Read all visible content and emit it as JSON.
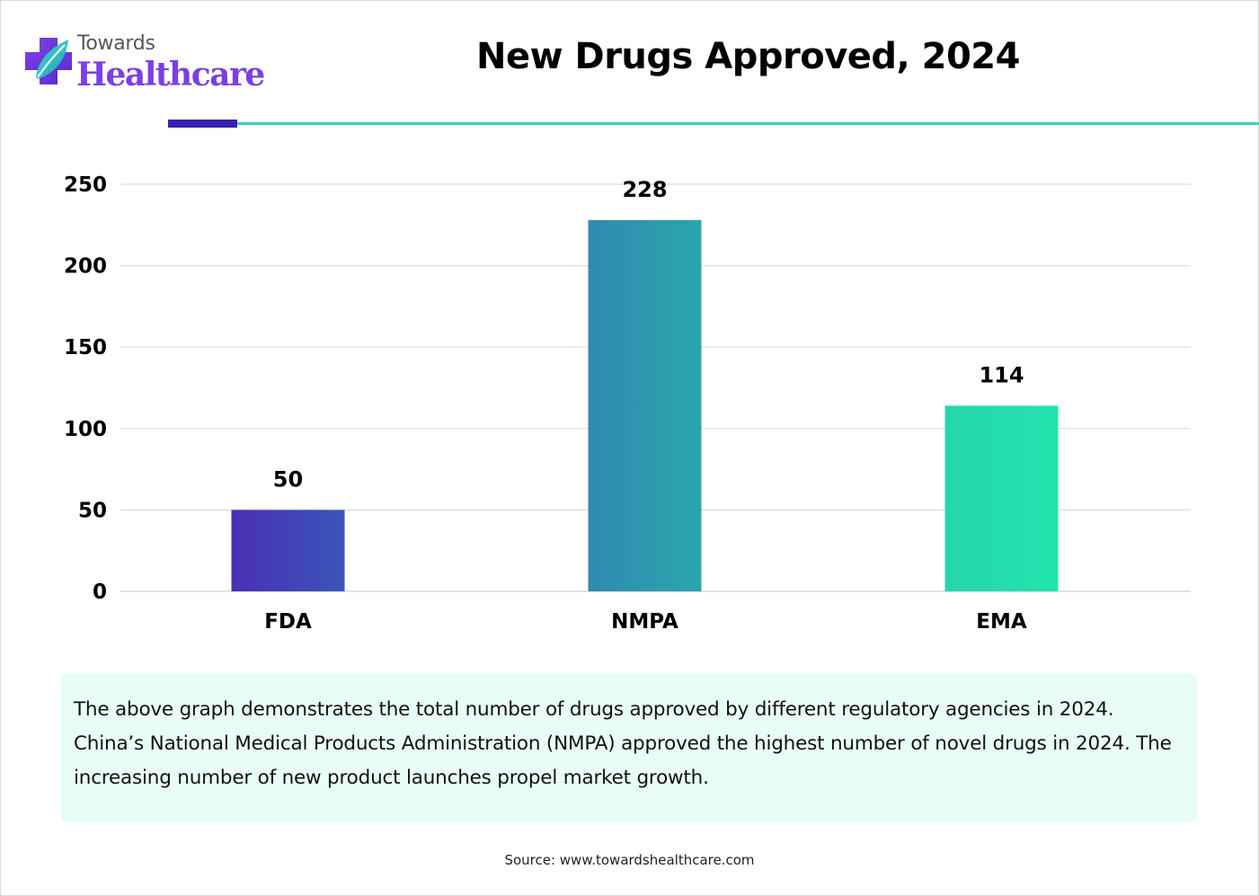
{
  "logo": {
    "line1": "Towards",
    "line2": "Healthcare"
  },
  "header": {
    "title": "New Drugs Approved, 2024"
  },
  "colors": {
    "fda": "#4433b8",
    "nmpa": "#2e9bb0",
    "ema": "#24e0ae",
    "accent_dark": "#3a1fb0",
    "accent_teal": "#33d6bd"
  },
  "chart_data": {
    "type": "bar",
    "title": "New Drugs Approved, 2024",
    "categories": [
      "FDA",
      "NMPA",
      "EMA"
    ],
    "values": [
      50,
      228,
      114
    ],
    "value_labels": [
      "50",
      "228",
      "114"
    ],
    "ylim": [
      0,
      250
    ],
    "yticks": [
      0,
      50,
      100,
      150,
      200,
      250
    ],
    "ytick_labels": [
      "0",
      "50",
      "100",
      "150",
      "200",
      "250"
    ],
    "xlabel": "",
    "ylabel": "",
    "grid": true
  },
  "description": "The above graph demonstrates the total number of drugs approved by different regulatory agencies in 2024. China’s National Medical Products Administration (NMPA) approved the highest number of novel drugs in 2024. The increasing number of new product launches propel market growth.",
  "source": "Source: www.towardshealthcare.com"
}
